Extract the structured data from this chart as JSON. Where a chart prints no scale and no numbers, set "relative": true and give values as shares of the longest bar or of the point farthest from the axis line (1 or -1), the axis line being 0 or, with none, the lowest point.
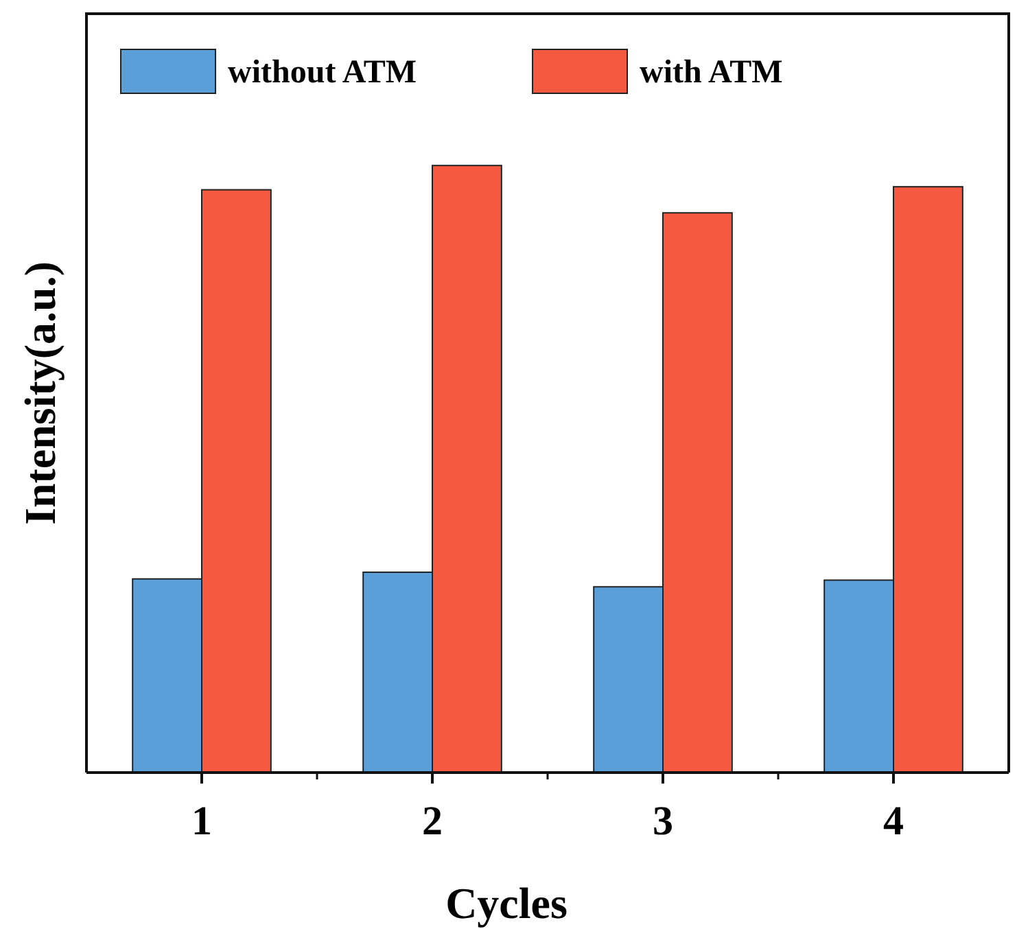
{
  "chart_data": {
    "type": "bar",
    "xlabel": "Cycles",
    "ylabel": "Intensity(a.u.)",
    "categories": [
      "1",
      "2",
      "3",
      "4"
    ],
    "relative": true,
    "legend": "top left",
    "series": [
      {
        "name": "without ATM",
        "color": "#5b9fd8",
        "values": [
          0.319,
          0.33,
          0.306,
          0.317
        ]
      },
      {
        "name": "with ATM",
        "color": "#f55a41",
        "values": [
          0.96,
          1,
          0.922,
          0.965
        ]
      }
    ]
  }
}
